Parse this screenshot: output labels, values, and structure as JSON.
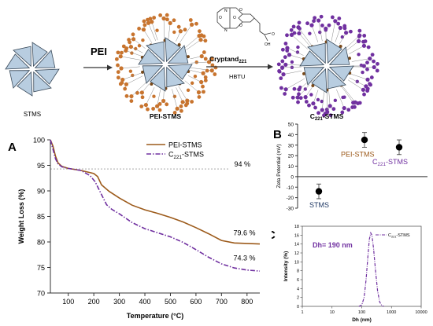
{
  "scheme": {
    "left_label": "STMS",
    "reagent1": "PEI",
    "middle_label": "PEI-STMS",
    "reagent2_main": "Cryptand",
    "reagent2_sub": "221",
    "reagent2_cond": "HBTU",
    "right_label_main": "C",
    "right_label_sub": "221",
    "right_label_rest": "-STMS",
    "oh_label": "OH",
    "o_label": "O",
    "n_label": "N",
    "colors": {
      "pei": "#c8742e",
      "c221": "#7030a0",
      "blade": "#b8cde0",
      "blade_edge": "#3a4a5a"
    }
  },
  "panels": {
    "a_letter": "A",
    "b_letter": "B",
    "c_letter": "C"
  },
  "chart_data": [
    {
      "type": "line",
      "panel": "A",
      "xlabel": "Temperature (°C)",
      "ylabel": "Weight Loss (%)",
      "xlim": [
        30,
        850
      ],
      "ylim": [
        70,
        100
      ],
      "xticks": [
        100,
        200,
        300,
        400,
        500,
        600,
        700,
        800
      ],
      "yticks": [
        70,
        75,
        80,
        85,
        90,
        95,
        100
      ],
      "legend_position": "top-right",
      "reference_line": {
        "y": 94.3,
        "label": "94 %"
      },
      "annotations": [
        {
          "text": "79.6 %",
          "x": 790,
          "y": 81.3,
          "series": 0
        },
        {
          "text": "74.3 %",
          "x": 790,
          "y": 76.4,
          "series": 1
        }
      ],
      "series": [
        {
          "name": "PEI-STMS",
          "color": "#9c5a1a",
          "style": "solid",
          "points": [
            [
              30,
              100
            ],
            [
              40,
              98.8
            ],
            [
              50,
              96.8
            ],
            [
              60,
              95.5
            ],
            [
              75,
              94.8
            ],
            [
              100,
              94.4
            ],
            [
              150,
              94.0
            ],
            [
              200,
              93.4
            ],
            [
              215,
              92.8
            ],
            [
              230,
              91.2
            ],
            [
              260,
              89.9
            ],
            [
              300,
              88.6
            ],
            [
              350,
              87.2
            ],
            [
              400,
              86.3
            ],
            [
              450,
              85.6
            ],
            [
              500,
              84.8
            ],
            [
              550,
              83.9
            ],
            [
              600,
              82.8
            ],
            [
              650,
              81.6
            ],
            [
              700,
              80.3
            ],
            [
              750,
              79.8
            ],
            [
              800,
              79.7
            ],
            [
              850,
              79.6
            ]
          ]
        },
        {
          "name_main": "C",
          "name_sub": "221",
          "name_rest": "-STMS",
          "color": "#7030a0",
          "style": "dashdot",
          "points": [
            [
              30,
              100
            ],
            [
              40,
              98.2
            ],
            [
              50,
              96.3
            ],
            [
              60,
              95.3
            ],
            [
              75,
              94.7
            ],
            [
              100,
              94.4
            ],
            [
              150,
              94.0
            ],
            [
              185,
              93.0
            ],
            [
              205,
              91.8
            ],
            [
              230,
              89.3
            ],
            [
              250,
              87.3
            ],
            [
              270,
              86.4
            ],
            [
              300,
              85.5
            ],
            [
              350,
              83.8
            ],
            [
              400,
              82.6
            ],
            [
              450,
              81.8
            ],
            [
              500,
              81.0
            ],
            [
              550,
              79.9
            ],
            [
              600,
              78.5
            ],
            [
              650,
              77.0
            ],
            [
              700,
              75.7
            ],
            [
              750,
              74.9
            ],
            [
              800,
              74.5
            ],
            [
              850,
              74.3
            ]
          ]
        }
      ]
    },
    {
      "type": "scatter",
      "panel": "B",
      "ylabel": "Zeta Potential (mV)",
      "ylim": [
        -30,
        50
      ],
      "yticks": [
        -30,
        -20,
        -10,
        0,
        10,
        20,
        30,
        40,
        50
      ],
      "points": [
        {
          "label": "STMS",
          "y": -14,
          "err": 7,
          "color": "#1f3864"
        },
        {
          "label": "PEI-STMS",
          "y": 35,
          "err": 7,
          "color": "#9c5a1a"
        },
        {
          "label_main": "C",
          "label_sub": "221",
          "label_rest": "-STMS",
          "y": 28,
          "err": 7,
          "color": "#7030a0"
        }
      ]
    },
    {
      "type": "line",
      "panel": "C",
      "xlabel": "Dh (nm)",
      "ylabel": "Intensity (%)",
      "xscale": "log",
      "xlim": [
        1,
        10000
      ],
      "ylim": [
        0,
        18
      ],
      "xticks": [
        1,
        10,
        100,
        1000,
        10000
      ],
      "yticks": [
        0,
        2,
        4,
        6,
        8,
        10,
        12,
        14,
        16,
        18
      ],
      "annotation": "Dh= 190 nm",
      "legend_position": "top-right",
      "series": [
        {
          "name_main": "C",
          "name_sub": "221",
          "name_rest": "-STMS",
          "color": "#7030a0",
          "points": [
            [
              80,
              0
            ],
            [
              100,
              0.3
            ],
            [
              120,
              2
            ],
            [
              140,
              6
            ],
            [
              160,
              11
            ],
            [
              180,
              15
            ],
            [
              200,
              16.5
            ],
            [
              220,
              16
            ],
            [
              250,
              13
            ],
            [
              290,
              8
            ],
            [
              340,
              3.5
            ],
            [
              400,
              1
            ],
            [
              470,
              0.2
            ],
            [
              550,
              0
            ]
          ]
        }
      ]
    }
  ]
}
